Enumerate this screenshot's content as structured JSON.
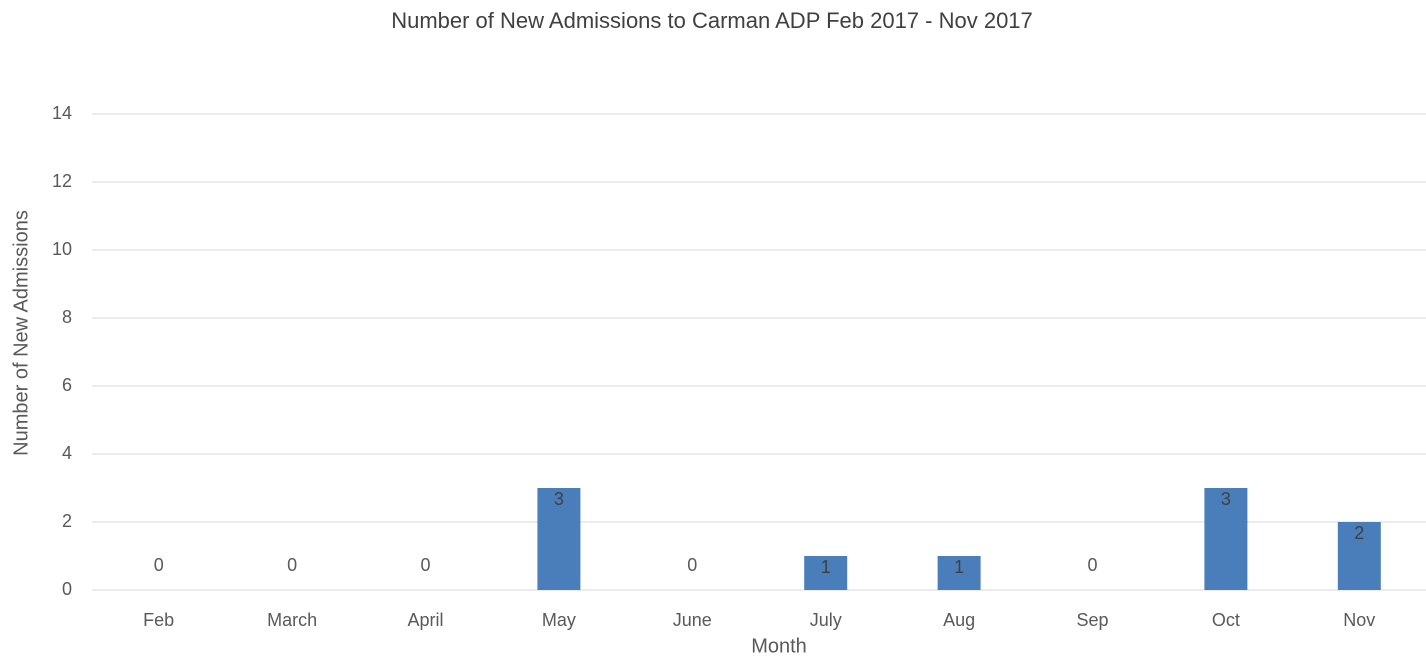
{
  "chart_data": {
    "type": "bar",
    "title": "Number of New Admissions to Carman ADP Feb 2017 - Nov 2017",
    "x_label": "Month",
    "y_label": "Number of New Admissions",
    "categories": [
      "Feb",
      "March",
      "April",
      "May",
      "June",
      "July",
      "Aug",
      "Sep",
      "Oct",
      "Nov"
    ],
    "values": [
      0,
      0,
      0,
      3,
      0,
      1,
      1,
      0,
      3,
      2
    ],
    "color": "#4a7ebb",
    "ylim": [
      0,
      14
    ],
    "yticks": [
      0,
      2,
      4,
      6,
      8,
      10,
      12,
      14
    ],
    "grid": true
  }
}
